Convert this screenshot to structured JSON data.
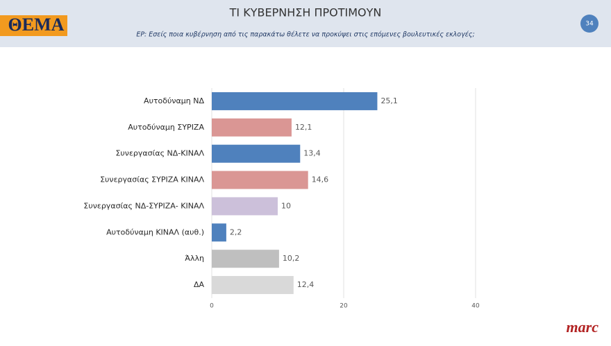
{
  "header": {
    "logo": "ΘΕΜΑ",
    "slide_number": "34"
  },
  "footer": {
    "brand": "marc"
  },
  "chart_data": {
    "type": "hbar",
    "title": "ΤΙ ΚΥΒΕΡΝΗΣΗ ΠΡΟΤΙΜΟΥΝ",
    "subtitle": "ΕΡ: Εσείς ποια κυβέρνηση από τις παρακάτω  θέλετε να προκύψει στις επόμενες βουλευτικές εκλογές;",
    "categories": [
      "Αυτοδύναμη ΝΔ",
      "Αυτοδύναμη ΣΥΡΙΖΑ",
      "Συνεργασίας ΝΔ-ΚΙΝΑΛ",
      "Συνεργασίας ΣΥΡΙΖΑ ΚΙΝΑΛ",
      "Συνεργασίας ΝΔ-ΣΥΡΙΖΑ- ΚΙΝΑΛ",
      "Αυτοδύναμη ΚΙΝΑΛ (αυθ.)",
      "Άλλη",
      "ΔΑ"
    ],
    "values": [
      25.1,
      12.1,
      13.4,
      14.6,
      10,
      2.2,
      10.2,
      12.4
    ],
    "value_labels": [
      "25,1",
      "12,1",
      "13,4",
      "14,6",
      "10",
      "2,2",
      "10,2",
      "12,4"
    ],
    "colors": [
      "#4f81bd",
      "#da9694",
      "#4f81bd",
      "#da9694",
      "#ccc0da",
      "#4f81bd",
      "#bfbfbf",
      "#d9d9d9"
    ],
    "xlim": [
      0,
      40
    ],
    "xticks": [
      0,
      20,
      40
    ],
    "grid": true
  }
}
